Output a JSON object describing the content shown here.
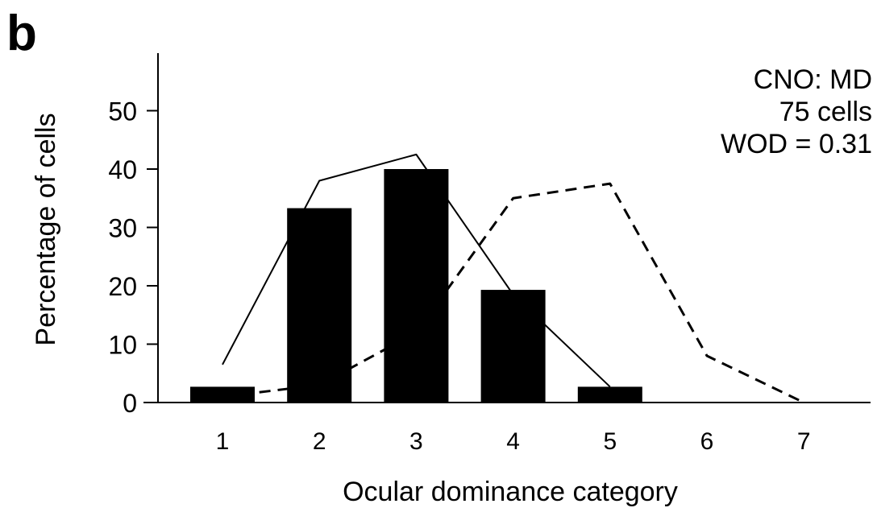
{
  "panel_label": "b",
  "chart_data": {
    "type": "bar",
    "title": "",
    "xlabel": "Ocular dominance category",
    "ylabel": "Percentage of cells",
    "categories": [
      "1",
      "2",
      "3",
      "4",
      "5",
      "6",
      "7"
    ],
    "yticks": [
      "0",
      "10",
      "20",
      "30",
      "40",
      "50"
    ],
    "ylim": [
      0,
      60
    ],
    "grid": false,
    "legend": "none",
    "annotation": [
      "CNO:  MD",
      "75 cells",
      "WOD = 0.31"
    ],
    "bars": {
      "style": "filled",
      "color": "#000000",
      "values": [
        2.7,
        33.3,
        40.0,
        19.3,
        2.7,
        0,
        0
      ]
    },
    "series": [
      {
        "style": "solid-line",
        "color": "#000000",
        "values": [
          6.5,
          38.0,
          42.5,
          18.5,
          2.7,
          null,
          null
        ]
      },
      {
        "style": "dashed-line",
        "color": "#000000",
        "values": [
          1.0,
          3.0,
          12.0,
          35.0,
          37.5,
          8.0,
          0.0
        ]
      }
    ]
  }
}
